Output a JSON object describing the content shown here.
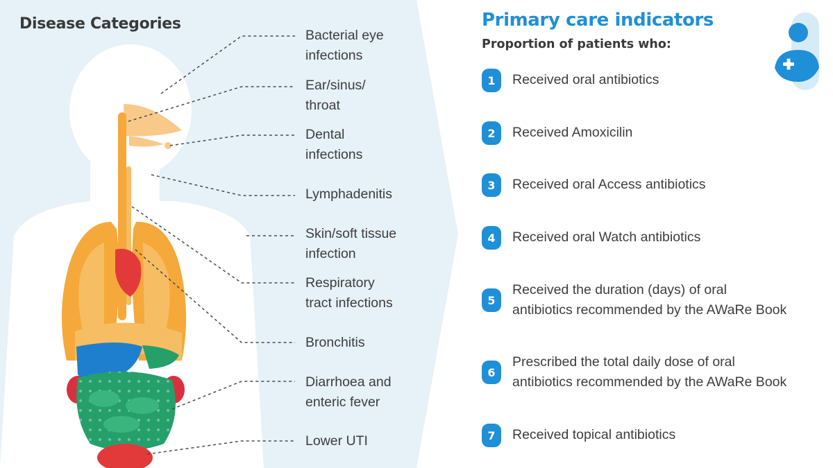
{
  "left_title": "Disease Categories",
  "disease_categories": [
    {
      "label": "Bacterial eye\ninfections"
    },
    {
      "label": "Ear/sinus/\nthroat"
    },
    {
      "label": "Dental\ninfections"
    },
    {
      "label": "Lymphadenitis"
    },
    {
      "label": "Skin/soft tissue\ninfection"
    },
    {
      "label": "Respiratory\ntract infections"
    },
    {
      "label": "Bronchitis"
    },
    {
      "label": "Diarrhoea and\nenteric fever"
    },
    {
      "label": "Lower UTI"
    }
  ],
  "right_title": "Primary care indicators",
  "right_subtitle": "Proportion of patients who:",
  "indicators": [
    {
      "num": "1",
      "text": "Received oral antibiotics"
    },
    {
      "num": "2",
      "text": "Received Amoxicilin"
    },
    {
      "num": "3",
      "text": "Received oral Access antibiotics"
    },
    {
      "num": "4",
      "text": "Received oral Watch antibiotics"
    },
    {
      "num": "5",
      "text": "Received the duration (days) of oral\nantibiotics recommended by the AWaRe Book"
    },
    {
      "num": "6",
      "text": "Prescribed the total daily dose of oral\nantibiotics recommended by the AWaRe Book"
    },
    {
      "num": "7",
      "text": "Received topical antibiotics"
    }
  ],
  "colors": {
    "panel_bg": "#e6f1f8",
    "accent": "#1f8fd8",
    "lungs": "#f5a93a",
    "heart": "#e23a3a",
    "intestine": "#25a06a",
    "liver": "#1f7fcf",
    "kidney": "#d93040"
  },
  "icons": [
    "patient-add-icon"
  ]
}
